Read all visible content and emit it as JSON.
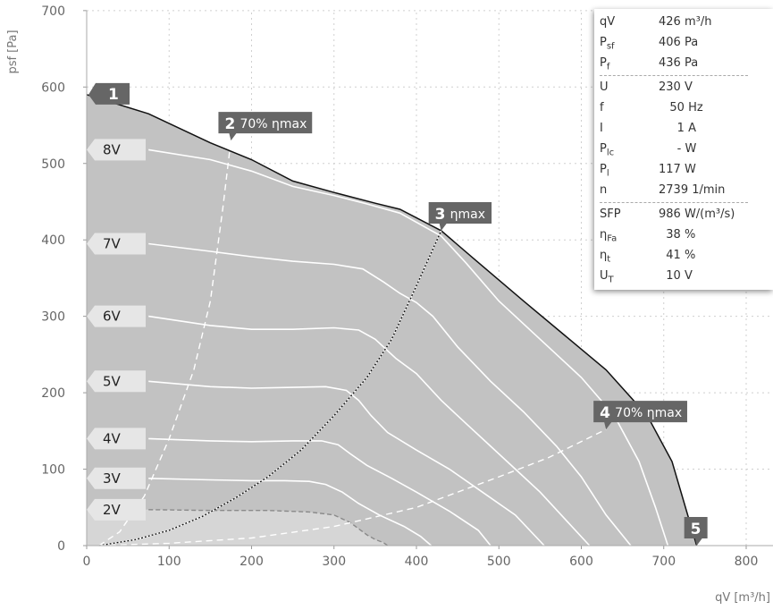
{
  "chart_data": {
    "type": "line",
    "xlabel": "qV [m³/h]",
    "ylabel": "psf [Pa]",
    "xlim": [
      0,
      850
    ],
    "ylim": [
      0,
      700
    ],
    "x_ticks": [
      "0",
      "100",
      "200",
      "300",
      "400",
      "500",
      "600",
      "700",
      "800"
    ],
    "y_ticks": [
      "0",
      "100",
      "200",
      "300",
      "400",
      "500",
      "600",
      "700"
    ],
    "grid": true,
    "envelope": [
      [
        0,
        590
      ],
      [
        75,
        565
      ],
      [
        150,
        527
      ],
      [
        200,
        505
      ],
      [
        250,
        477
      ],
      [
        300,
        462
      ],
      [
        350,
        448
      ],
      [
        380,
        440
      ],
      [
        430,
        412
      ],
      [
        470,
        375
      ],
      [
        530,
        320
      ],
      [
        580,
        275
      ],
      [
        630,
        230
      ],
      [
        680,
        170
      ],
      [
        710,
        110
      ],
      [
        740,
        0
      ]
    ],
    "series": [
      {
        "name": "8V",
        "points": [
          [
            75,
            518
          ],
          [
            150,
            505
          ],
          [
            200,
            490
          ],
          [
            250,
            470
          ],
          [
            300,
            458
          ],
          [
            340,
            447
          ],
          [
            380,
            435
          ],
          [
            430,
            405
          ],
          [
            460,
            370
          ],
          [
            500,
            320
          ],
          [
            550,
            270
          ],
          [
            600,
            220
          ],
          [
            640,
            170
          ],
          [
            670,
            110
          ],
          [
            690,
            50
          ],
          [
            705,
            0
          ]
        ]
      },
      {
        "name": "7V",
        "points": [
          [
            75,
            395
          ],
          [
            150,
            385
          ],
          [
            200,
            378
          ],
          [
            250,
            372
          ],
          [
            300,
            368
          ],
          [
            335,
            362
          ],
          [
            360,
            345
          ],
          [
            380,
            330
          ],
          [
            400,
            318
          ],
          [
            420,
            300
          ],
          [
            450,
            260
          ],
          [
            490,
            215
          ],
          [
            530,
            175
          ],
          [
            570,
            130
          ],
          [
            600,
            90
          ],
          [
            630,
            40
          ],
          [
            660,
            0
          ]
        ]
      },
      {
        "name": "6V",
        "points": [
          [
            75,
            300
          ],
          [
            150,
            288
          ],
          [
            200,
            283
          ],
          [
            250,
            283
          ],
          [
            300,
            285
          ],
          [
            330,
            282
          ],
          [
            350,
            270
          ],
          [
            375,
            245
          ],
          [
            400,
            225
          ],
          [
            430,
            190
          ],
          [
            460,
            160
          ],
          [
            490,
            130
          ],
          [
            520,
            100
          ],
          [
            550,
            70
          ],
          [
            580,
            35
          ],
          [
            610,
            0
          ]
        ]
      },
      {
        "name": "5V",
        "points": [
          [
            75,
            215
          ],
          [
            150,
            208
          ],
          [
            200,
            206
          ],
          [
            250,
            207
          ],
          [
            290,
            208
          ],
          [
            315,
            203
          ],
          [
            330,
            190
          ],
          [
            345,
            170
          ],
          [
            365,
            148
          ],
          [
            400,
            125
          ],
          [
            440,
            100
          ],
          [
            480,
            70
          ],
          [
            520,
            40
          ],
          [
            555,
            0
          ]
        ]
      },
      {
        "name": "4V",
        "points": [
          [
            75,
            140
          ],
          [
            150,
            137
          ],
          [
            200,
            136
          ],
          [
            250,
            137
          ],
          [
            285,
            137
          ],
          [
            305,
            132
          ],
          [
            320,
            120
          ],
          [
            340,
            105
          ],
          [
            370,
            88
          ],
          [
            400,
            70
          ],
          [
            440,
            45
          ],
          [
            475,
            20
          ],
          [
            490,
            0
          ]
        ]
      },
      {
        "name": "3V",
        "points": [
          [
            75,
            88
          ],
          [
            150,
            86
          ],
          [
            200,
            85
          ],
          [
            240,
            85
          ],
          [
            270,
            84
          ],
          [
            290,
            80
          ],
          [
            310,
            70
          ],
          [
            330,
            55
          ],
          [
            355,
            40
          ],
          [
            385,
            25
          ],
          [
            405,
            12
          ],
          [
            418,
            0
          ]
        ]
      },
      {
        "name": "2V",
        "points": [
          [
            75,
            47
          ],
          [
            150,
            46
          ],
          [
            220,
            46
          ],
          [
            270,
            44
          ],
          [
            300,
            40
          ],
          [
            320,
            30
          ],
          [
            330,
            22
          ],
          [
            340,
            14
          ],
          [
            350,
            8
          ],
          [
            360,
            4
          ],
          [
            365,
            0
          ]
        ]
      }
    ],
    "efficiency_curves": [
      {
        "name": "70% ηmax",
        "points": [
          [
            15,
            0
          ],
          [
            40,
            18
          ],
          [
            70,
            65
          ],
          [
            100,
            140
          ],
          [
            130,
            230
          ],
          [
            150,
            320
          ],
          [
            165,
            440
          ],
          [
            175,
            530
          ]
        ]
      },
      {
        "name": "ηmax",
        "points": [
          [
            15,
            0
          ],
          [
            60,
            8
          ],
          [
            100,
            20
          ],
          [
            140,
            38
          ],
          [
            180,
            62
          ],
          [
            220,
            90
          ],
          [
            260,
            125
          ],
          [
            300,
            170
          ],
          [
            340,
            220
          ],
          [
            370,
            270
          ],
          [
            400,
            340
          ],
          [
            430,
            412
          ]
        ]
      },
      {
        "name": "70% ηmax",
        "points": [
          [
            15,
            0
          ],
          [
            100,
            3
          ],
          [
            200,
            10
          ],
          [
            300,
            25
          ],
          [
            400,
            50
          ],
          [
            500,
            90
          ],
          [
            560,
            115
          ],
          [
            630,
            152
          ]
        ]
      }
    ],
    "points": [
      {
        "num": "1",
        "text": "",
        "x": 0,
        "y": 590
      },
      {
        "num": "2",
        "text": "70% ηmax",
        "x": 175,
        "y": 530
      },
      {
        "num": "3",
        "text": "ηmax",
        "x": 430,
        "y": 412
      },
      {
        "num": "4",
        "text": "70% ηmax",
        "x": 630,
        "y": 152
      },
      {
        "num": "5",
        "text": "",
        "x": 740,
        "y": 0
      }
    ]
  },
  "info": {
    "rows": [
      {
        "label": "qV",
        "sub": "",
        "value": "426 m³/h"
      },
      {
        "label": "P",
        "sub": "sf",
        "value": "406 Pa"
      },
      {
        "label": "P",
        "sub": "f",
        "value": "436 Pa"
      },
      {
        "label": "U",
        "sub": "",
        "value": "230 V"
      },
      {
        "label": "f",
        "sub": "",
        "value": "   50 Hz"
      },
      {
        "label": "I",
        "sub": "",
        "value": "     1 A"
      },
      {
        "label": "P",
        "sub": "lc",
        "value": "     - W"
      },
      {
        "label": "P",
        "sub": "l",
        "value": "117 W"
      },
      {
        "label": "n",
        "sub": "",
        "value": "2739 1/min"
      },
      {
        "label": "SFP",
        "sub": "",
        "value": "986 W/(m³/s)"
      },
      {
        "label": "η",
        "sub": "Fa",
        "value": "  38 %"
      },
      {
        "label": "η",
        "sub": "t",
        "value": "  41 %"
      },
      {
        "label": "U",
        "sub": "T",
        "value": "  10 V"
      }
    ],
    "separators_after": [
      2,
      8
    ]
  },
  "colors": {
    "fill_dark": "#c2c2c2",
    "fill_light": "#d6d6d6",
    "envelope": "#111111",
    "curves": "#ffffff",
    "dashed_gray": "#8a8a8a",
    "marker": "#666666",
    "label_box": "#e6e6e6",
    "grid": "#cfcfcf"
  }
}
